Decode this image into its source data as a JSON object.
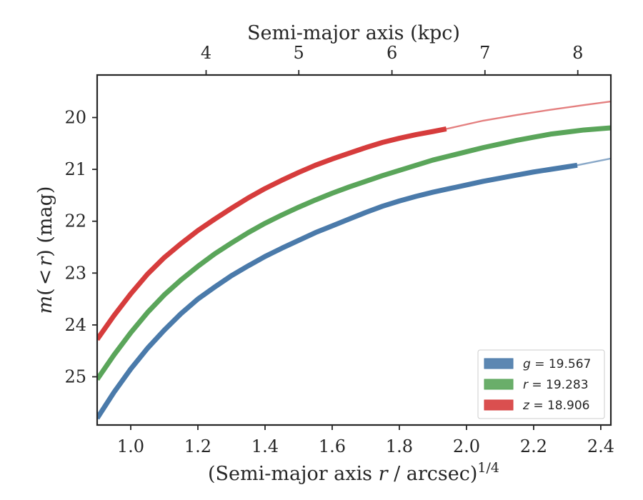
{
  "chart_data": {
    "type": "line",
    "title": "",
    "xlabel": "(Semi-major axis r / arcsec)^1/4",
    "xlabel_parts": {
      "prefix": "(Semi-major axis ",
      "var": "r",
      "mid": " / arcsec)",
      "sup": "1/4"
    },
    "ylabel": "m(< r) (mag)",
    "ylabel_parts": {
      "m": "m",
      "open": "(",
      "lt": "<",
      "r": "r",
      "close": ")",
      "unit": " (mag)"
    },
    "top_xlabel": "Semi-major axis (kpc)",
    "xlim": [
      0.9,
      2.43
    ],
    "ylim": [
      25.93,
      19.18
    ],
    "y_inverted": true,
    "x_ticks": [
      1.0,
      1.2,
      1.4,
      1.6,
      1.8,
      2.0,
      2.2,
      2.4
    ],
    "x_tick_labels": [
      "1.0",
      "1.2",
      "1.4",
      "1.6",
      "1.8",
      "2.0",
      "2.2",
      "2.4"
    ],
    "y_ticks": [
      20,
      21,
      22,
      23,
      24,
      25
    ],
    "y_tick_labels": [
      "20",
      "21",
      "22",
      "23",
      "24",
      "25"
    ],
    "top_ticks": [
      {
        "x": 1.2245,
        "label": "4"
      },
      {
        "x": 1.5005,
        "label": "5"
      },
      {
        "x": 1.778,
        "label": "6"
      },
      {
        "x": 2.055,
        "label": "7"
      },
      {
        "x": 2.3315,
        "label": "8"
      }
    ],
    "grid": false,
    "legend_position": "lower-right",
    "series": [
      {
        "name": "g = 19.567",
        "legend_label": {
          "var": "g",
          "rest": " = 19.567"
        },
        "color": "#4a7aaa",
        "x": [
          0.9,
          0.95,
          1.0,
          1.05,
          1.1,
          1.15,
          1.2,
          1.25,
          1.3,
          1.35,
          1.4,
          1.45,
          1.5,
          1.55,
          1.6,
          1.65,
          1.7,
          1.75,
          1.8,
          1.85,
          1.9,
          1.95,
          2.0,
          2.05,
          2.1,
          2.15,
          2.2,
          2.25,
          2.3,
          2.33
        ],
        "y": [
          25.8,
          25.3,
          24.85,
          24.45,
          24.1,
          23.78,
          23.5,
          23.27,
          23.05,
          22.86,
          22.68,
          22.52,
          22.37,
          22.22,
          22.09,
          21.96,
          21.83,
          21.71,
          21.61,
          21.52,
          21.44,
          21.37,
          21.3,
          21.23,
          21.17,
          21.11,
          21.05,
          21.0,
          20.95,
          20.92
        ],
        "extension": {
          "x": [
            2.33,
            2.43
          ],
          "y": [
            20.92,
            20.79
          ]
        }
      },
      {
        "name": "r = 19.283",
        "legend_label": {
          "var": "r",
          "rest": " = 19.283"
        },
        "color": "#5aa55a",
        "x": [
          0.9,
          0.95,
          1.0,
          1.05,
          1.1,
          1.15,
          1.2,
          1.25,
          1.3,
          1.35,
          1.4,
          1.45,
          1.5,
          1.55,
          1.6,
          1.65,
          1.7,
          1.75,
          1.8,
          1.85,
          1.9,
          1.95,
          2.0,
          2.05,
          2.1,
          2.15,
          2.2,
          2.25,
          2.3,
          2.35,
          2.43
        ],
        "y": [
          25.05,
          24.58,
          24.15,
          23.76,
          23.42,
          23.13,
          22.87,
          22.63,
          22.42,
          22.22,
          22.04,
          21.88,
          21.73,
          21.59,
          21.46,
          21.34,
          21.23,
          21.12,
          21.02,
          20.92,
          20.82,
          20.74,
          20.66,
          20.58,
          20.51,
          20.44,
          20.38,
          20.32,
          20.28,
          20.24,
          20.2
        ],
        "extension": null
      },
      {
        "name": "z = 18.906",
        "legend_label": {
          "var": "z",
          "rest": " = 18.906"
        },
        "color": "#d63c3c",
        "x": [
          0.9,
          0.95,
          1.0,
          1.05,
          1.1,
          1.15,
          1.2,
          1.25,
          1.3,
          1.35,
          1.4,
          1.45,
          1.5,
          1.55,
          1.6,
          1.65,
          1.7,
          1.75,
          1.8,
          1.85,
          1.9,
          1.94
        ],
        "y": [
          24.28,
          23.82,
          23.4,
          23.02,
          22.7,
          22.43,
          22.18,
          21.96,
          21.75,
          21.55,
          21.37,
          21.21,
          21.06,
          20.92,
          20.8,
          20.69,
          20.58,
          20.48,
          20.4,
          20.33,
          20.27,
          20.22
        ],
        "extension": {
          "x": [
            1.94,
            2.05,
            2.15,
            2.25,
            2.35,
            2.43
          ],
          "y": [
            20.22,
            20.06,
            19.95,
            19.85,
            19.76,
            19.69
          ]
        }
      }
    ]
  }
}
